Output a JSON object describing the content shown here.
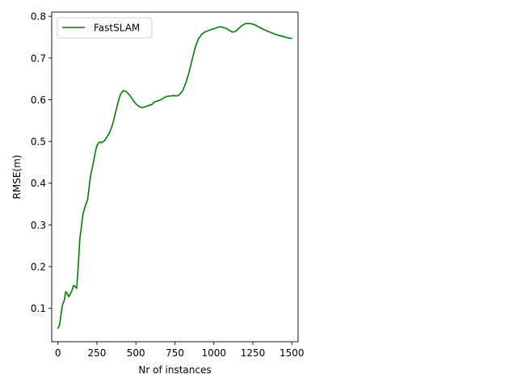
{
  "chart_data": {
    "type": "line",
    "title": "",
    "xlabel": "Nr of instances",
    "ylabel": "RMSE(m)",
    "xlim": [
      -40,
      1540
    ],
    "ylim": [
      0.02,
      0.81
    ],
    "xticks": [
      0,
      250,
      500,
      750,
      1000,
      1250,
      1500
    ],
    "yticks": [
      0.1,
      0.2,
      0.3,
      0.4,
      0.5,
      0.6,
      0.7,
      0.8
    ],
    "grid": false,
    "legend": {
      "location": "upper left"
    },
    "series": [
      {
        "name": "FastSLAM",
        "color": "#008000",
        "x": [
          0,
          10,
          20,
          30,
          40,
          50,
          60,
          70,
          80,
          90,
          100,
          110,
          120,
          130,
          140,
          150,
          160,
          175,
          190,
          200,
          210,
          225,
          240,
          250,
          260,
          270,
          280,
          290,
          300,
          310,
          320,
          330,
          350,
          370,
          390,
          400,
          410,
          420,
          440,
          460,
          480,
          500,
          520,
          540,
          560,
          580,
          600,
          620,
          640,
          660,
          680,
          700,
          720,
          740,
          760,
          780,
          800,
          820,
          840,
          860,
          880,
          900,
          920,
          940,
          960,
          980,
          1000,
          1020,
          1040,
          1060,
          1080,
          1100,
          1120,
          1140,
          1160,
          1180,
          1200,
          1220,
          1240,
          1260,
          1280,
          1300,
          1320,
          1340,
          1360,
          1380,
          1400,
          1420,
          1440,
          1460,
          1480,
          1500
        ],
        "y": [
          0.052,
          0.06,
          0.085,
          0.11,
          0.118,
          0.14,
          0.135,
          0.128,
          0.135,
          0.143,
          0.155,
          0.152,
          0.148,
          0.2,
          0.265,
          0.295,
          0.325,
          0.345,
          0.36,
          0.39,
          0.42,
          0.445,
          0.475,
          0.49,
          0.496,
          0.499,
          0.497,
          0.5,
          0.502,
          0.508,
          0.515,
          0.52,
          0.54,
          0.57,
          0.6,
          0.612,
          0.618,
          0.622,
          0.619,
          0.611,
          0.6,
          0.59,
          0.584,
          0.581,
          0.583,
          0.586,
          0.588,
          0.595,
          0.597,
          0.6,
          0.605,
          0.608,
          0.609,
          0.61,
          0.609,
          0.612,
          0.622,
          0.64,
          0.665,
          0.695,
          0.725,
          0.745,
          0.756,
          0.762,
          0.765,
          0.768,
          0.77,
          0.773,
          0.775,
          0.773,
          0.771,
          0.766,
          0.762,
          0.764,
          0.771,
          0.778,
          0.782,
          0.783,
          0.782,
          0.78,
          0.776,
          0.772,
          0.768,
          0.765,
          0.762,
          0.759,
          0.756,
          0.754,
          0.752,
          0.75,
          0.748,
          0.747
        ]
      }
    ]
  }
}
